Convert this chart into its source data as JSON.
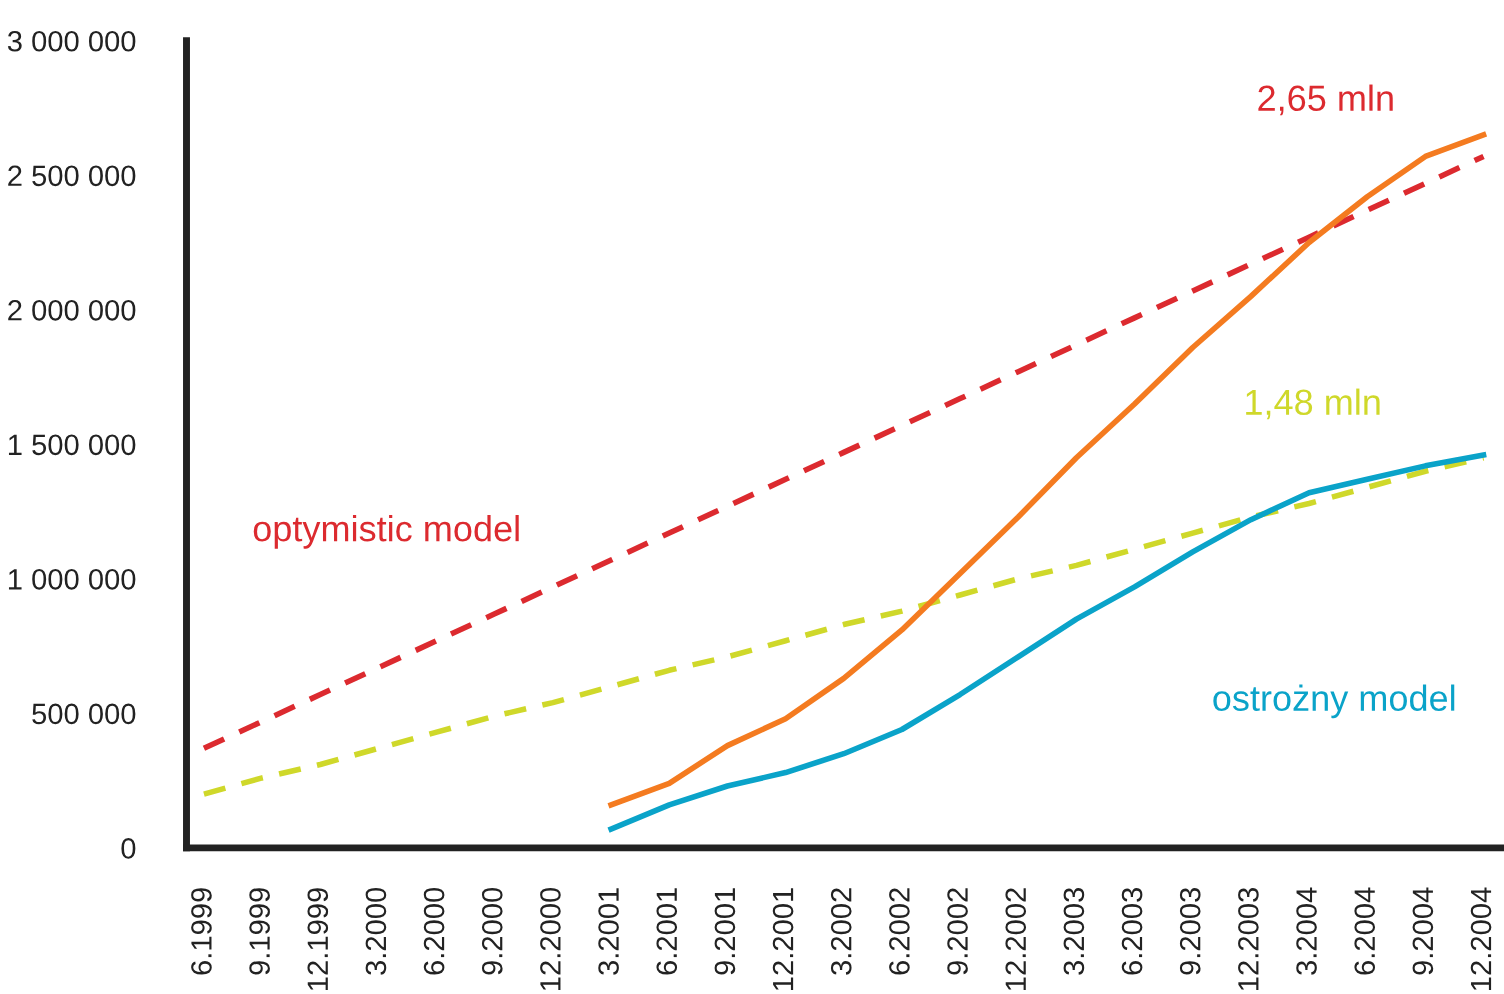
{
  "chart_data": {
    "type": "line",
    "categories": [
      "6.1999",
      "9.1999",
      "12.1999",
      "3.2000",
      "6.2000",
      "9.2000",
      "12.2000",
      "3.2001",
      "6.2001",
      "9.2001",
      "12.2001",
      "3.2002",
      "6.2002",
      "9.2002",
      "12.2002",
      "3.2003",
      "6.2003",
      "9.2003",
      "12.2003",
      "3.2004",
      "6.2004",
      "9.2004",
      "12.2004"
    ],
    "series": [
      {
        "name": "optymistic model",
        "color": "#dc2a2f",
        "line_style": "dashed",
        "values": [
          370000,
          470000,
          570000,
          670000,
          770000,
          870000,
          970000,
          1070000,
          1170000,
          1270000,
          1370000,
          1470000,
          1570000,
          1670000,
          1770000,
          1870000,
          1970000,
          2070000,
          2170000,
          2270000,
          2370000,
          2470000,
          2570000
        ]
      },
      {
        "color": "#cfd82a",
        "line_style": "dashed",
        "values": [
          200000,
          260000,
          310000,
          370000,
          430000,
          490000,
          540000,
          600000,
          660000,
          710000,
          770000,
          830000,
          880000,
          940000,
          1000000,
          1050000,
          1110000,
          1170000,
          1230000,
          1280000,
          1340000,
          1400000,
          1450000
        ]
      },
      {
        "color": "#f47b20",
        "line_style": "solid",
        "values": [
          null,
          null,
          null,
          null,
          null,
          null,
          null,
          160000,
          240000,
          380000,
          480000,
          630000,
          810000,
          1020000,
          1230000,
          1450000,
          1650000,
          1860000,
          2050000,
          2250000,
          2420000,
          2570000,
          2650000
        ]
      },
      {
        "name": "ostrożny model",
        "color": "#0aa3c9",
        "line_style": "solid",
        "values": [
          null,
          null,
          null,
          null,
          null,
          null,
          null,
          70000,
          160000,
          230000,
          280000,
          350000,
          440000,
          570000,
          710000,
          850000,
          970000,
          1100000,
          1220000,
          1320000,
          1370000,
          1420000,
          1460000
        ]
      }
    ],
    "annotations": [
      {
        "text": "2,65 mln",
        "x": "12.2004",
        "y": 2650000
      },
      {
        "text": "1,48 mln",
        "x": "12.2004",
        "y": 1460000
      }
    ],
    "ylim": [
      0,
      3000000
    ],
    "yticks": [
      {
        "value": 0,
        "label": "0"
      },
      {
        "value": 500000,
        "label": "500 000"
      },
      {
        "value": 1000000,
        "label": "1 000 000"
      },
      {
        "value": 1500000,
        "label": "1 500 000"
      },
      {
        "value": 2000000,
        "label": "2 000 000"
      },
      {
        "value": 2500000,
        "label": "2 500 000"
      },
      {
        "value": 3000000,
        "label": "3 000 000"
      }
    ],
    "grid": false,
    "legend": false
  }
}
